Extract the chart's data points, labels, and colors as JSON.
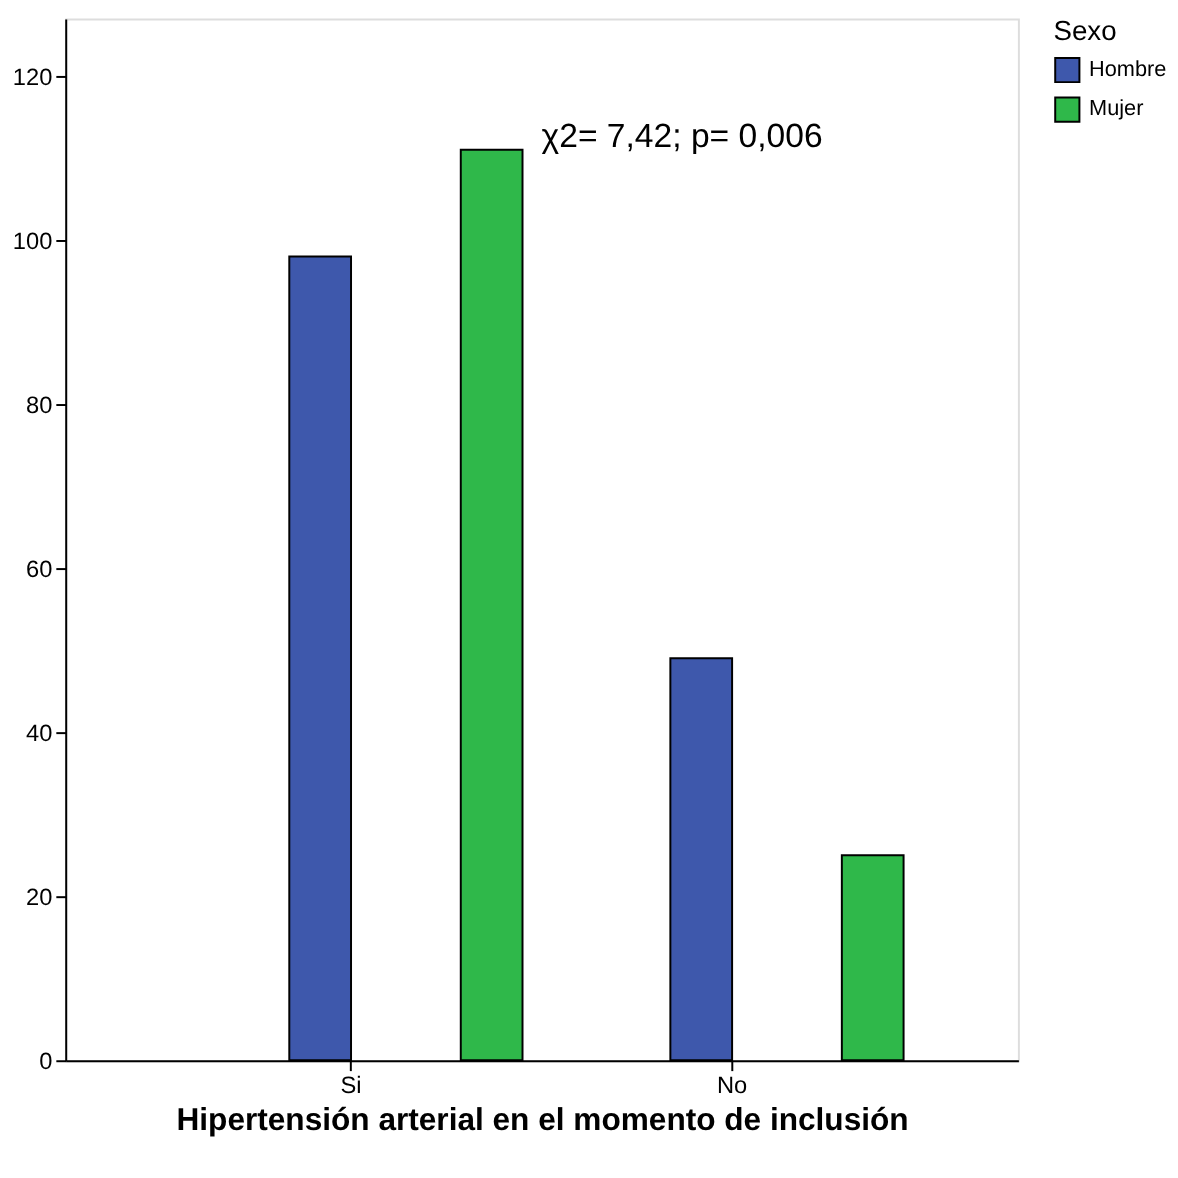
{
  "chart_data": {
    "type": "bar",
    "xlabel": "Hipertensión arterial en el momento de inclusión",
    "legend_title": "Sexo",
    "legend": "top right",
    "categories": [
      "Si",
      "No"
    ],
    "series": [
      {
        "name": "Hombre",
        "color": "#3e58ac",
        "values": [
          98,
          49
        ]
      },
      {
        "name": "Mujer",
        "color": "#2fb84a",
        "values": [
          111,
          25
        ]
      }
    ],
    "ylim": [
      0,
      127
    ],
    "yticks": [
      0,
      20,
      40,
      60,
      80,
      100,
      120
    ],
    "grid": false,
    "annotations": [
      "χ2= 7,42; p= 0,006"
    ]
  }
}
